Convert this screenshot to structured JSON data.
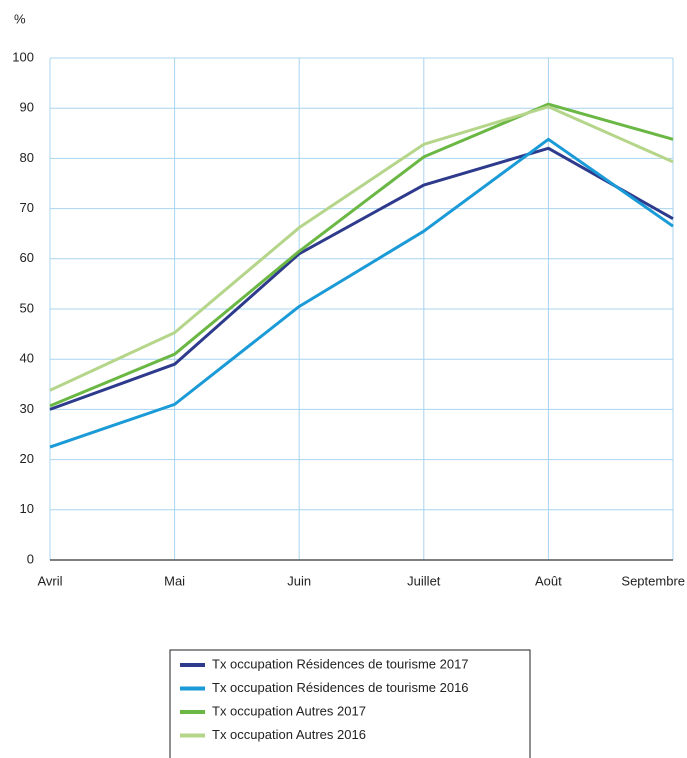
{
  "chart_data": {
    "type": "line",
    "y_label": "%",
    "categories": [
      "Avril",
      "Mai",
      "Juin",
      "Juillet",
      "Août",
      "Septembre"
    ],
    "series": [
      {
        "name": "Tx occupation Résidences de tourisme 2017",
        "color": "#2e3a8c",
        "values": [
          30,
          39,
          61,
          74.7,
          82,
          68
        ]
      },
      {
        "name": "Tx occupation Résidences de tourisme 2016",
        "color": "#1a9ad6",
        "values": [
          22.5,
          31,
          50.5,
          65.5,
          83.8,
          66.5
        ]
      },
      {
        "name": "Tx occupation Autres 2017",
        "color": "#6ab744",
        "values": [
          30.7,
          41,
          61.5,
          80.3,
          90.8,
          83.8
        ]
      },
      {
        "name": "Tx occupation Autres 2016",
        "color": "#b5d68a",
        "values": [
          33.8,
          45.3,
          66.2,
          82.8,
          90.3,
          79.3
        ]
      }
    ],
    "ylim": [
      0,
      100
    ],
    "yticks": [
      0,
      10,
      20,
      30,
      40,
      50,
      60,
      70,
      80,
      90,
      100
    ],
    "grid": true
  }
}
